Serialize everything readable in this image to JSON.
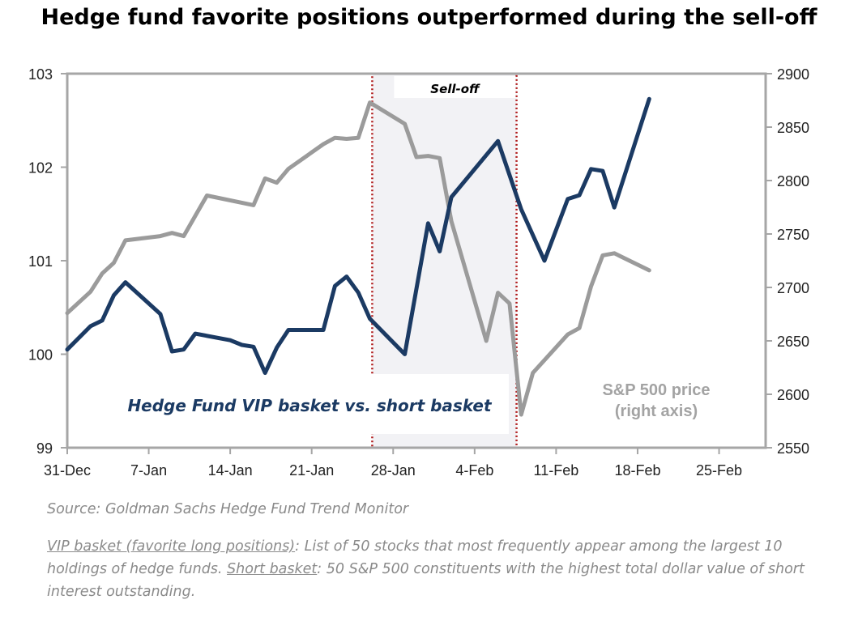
{
  "title": "Hedge fund favorite positions outperformed during the sell-off",
  "chart_data": {
    "type": "line",
    "x_tick_labels": [
      "31-Dec",
      "7-Jan",
      "14-Jan",
      "21-Jan",
      "28-Jan",
      "4-Feb",
      "11-Feb",
      "18-Feb",
      "25-Feb"
    ],
    "left_axis": {
      "ticks": [
        "99",
        "100",
        "101",
        "102",
        "103"
      ],
      "ylim": [
        99,
        103
      ]
    },
    "right_axis": {
      "ticks": [
        "2550",
        "2600",
        "2650",
        "2700",
        "2750",
        "2800",
        "2850",
        "2900"
      ],
      "ylim": [
        2550,
        2900
      ]
    },
    "shaded_region": {
      "label": "Sell-off",
      "x_start": 26.2,
      "x_end": 38.6
    },
    "series": [
      {
        "name": "Hedge Fund VIP basket vs. short basket",
        "axis": "left",
        "color": "#1b3a63",
        "points": [
          [
            0,
            100.05
          ],
          [
            2,
            100.3
          ],
          [
            3,
            100.36
          ],
          [
            4,
            100.63
          ],
          [
            5,
            100.77
          ],
          [
            8,
            100.43
          ],
          [
            9,
            100.03
          ],
          [
            10,
            100.05
          ],
          [
            11,
            100.22
          ],
          [
            14,
            100.15
          ],
          [
            15,
            100.1
          ],
          [
            16,
            100.08
          ],
          [
            17,
            99.8
          ],
          [
            18,
            100.07
          ],
          [
            19,
            100.26
          ],
          [
            22,
            100.26
          ],
          [
            23,
            100.73
          ],
          [
            24,
            100.83
          ],
          [
            25,
            100.66
          ],
          [
            26,
            100.38
          ],
          [
            29,
            100.0
          ],
          [
            31,
            101.4
          ],
          [
            32,
            101.1
          ],
          [
            33,
            101.68
          ],
          [
            37,
            102.28
          ],
          [
            39,
            101.55
          ],
          [
            41,
            101.0
          ],
          [
            43,
            101.66
          ],
          [
            44,
            101.7
          ],
          [
            45,
            101.98
          ],
          [
            46,
            101.96
          ],
          [
            47,
            101.57
          ],
          [
            50,
            102.73
          ]
        ]
      },
      {
        "name": "S&P 500 price",
        "axis": "right",
        "color": "#9b9b9b",
        "label_lines": [
          "S&P 500 price",
          "(right axis)"
        ],
        "points": [
          [
            0,
            2676
          ],
          [
            2,
            2696
          ],
          [
            3,
            2713
          ],
          [
            4,
            2723
          ],
          [
            5,
            2744
          ],
          [
            8,
            2748
          ],
          [
            9,
            2751
          ],
          [
            10,
            2748
          ],
          [
            11,
            2767
          ],
          [
            12,
            2786
          ],
          [
            16,
            2777
          ],
          [
            17,
            2802
          ],
          [
            18,
            2798
          ],
          [
            19,
            2811
          ],
          [
            22,
            2834
          ],
          [
            23,
            2840
          ],
          [
            24,
            2839
          ],
          [
            25,
            2840
          ],
          [
            26,
            2873
          ],
          [
            29,
            2853
          ],
          [
            30,
            2822
          ],
          [
            31,
            2823
          ],
          [
            32,
            2821
          ],
          [
            33,
            2762
          ],
          [
            36,
            2650
          ],
          [
            37,
            2695
          ],
          [
            38,
            2685
          ],
          [
            39,
            2581
          ],
          [
            40,
            2620
          ],
          [
            43,
            2656
          ],
          [
            44,
            2662
          ],
          [
            45,
            2701
          ],
          [
            46,
            2730
          ],
          [
            47,
            2732
          ],
          [
            50,
            2716
          ]
        ]
      }
    ],
    "xlim": [
      0,
      60
    ]
  },
  "notes": {
    "source": "Source: Goldman Sachs Hedge Fund Trend Monitor",
    "vip_term": "VIP basket (favorite long positions)",
    "vip_text": ": List of 50 stocks that most frequently appear among the largest 10 holdings of hedge funds. ",
    "short_term": "Short basket",
    "short_text": ": 50 S&P 500 constituents with the highest total dollar value of short interest outstanding."
  }
}
